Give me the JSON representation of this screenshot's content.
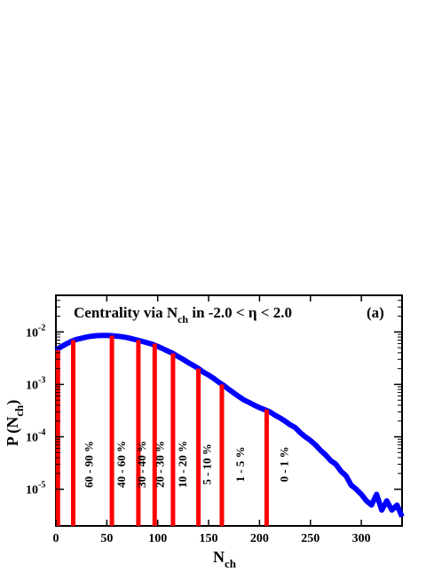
{
  "chart_data": {
    "type": "line",
    "title_parts": {
      "a": "Centrality via N",
      "sub": "ch",
      "b": " in  -2.0 < η < 2.0"
    },
    "panel_label": "(a)",
    "xlabel": {
      "main": "N",
      "sub": "ch"
    },
    "ylabel": {
      "pre": "P (N",
      "sub": "ch",
      "post": ")"
    },
    "xlim": [
      0,
      340
    ],
    "ylim": [
      2e-06,
      0.05
    ],
    "yscale": "log",
    "x_ticks": [
      0,
      50,
      100,
      150,
      200,
      250,
      300
    ],
    "x_tick_labels": [
      "0",
      "50",
      "100",
      "150",
      "200",
      "250",
      "300"
    ],
    "y_ticks": [
      {
        "value": 0.01,
        "base": "10",
        "exp": "-2"
      },
      {
        "value": 0.001,
        "base": "10",
        "exp": "-3"
      },
      {
        "value": 0.0001,
        "base": "10",
        "exp": "-4"
      },
      {
        "value": 1e-05,
        "base": "10",
        "exp": "-5"
      }
    ],
    "series": [
      {
        "color": "#0000ff",
        "points": [
          [
            0,
            0.0045
          ],
          [
            5,
            0.0052
          ],
          [
            10,
            0.0059
          ],
          [
            15,
            0.0066
          ],
          [
            20,
            0.0072
          ],
          [
            25,
            0.0076
          ],
          [
            30,
            0.008
          ],
          [
            35,
            0.0083
          ],
          [
            40,
            0.0085
          ],
          [
            45,
            0.0086
          ],
          [
            50,
            0.0086
          ],
          [
            55,
            0.0085
          ],
          [
            60,
            0.0083
          ],
          [
            65,
            0.0081
          ],
          [
            70,
            0.0078
          ],
          [
            75,
            0.0074
          ],
          [
            80,
            0.007
          ],
          [
            85,
            0.0066
          ],
          [
            90,
            0.0062
          ],
          [
            95,
            0.0058
          ],
          [
            100,
            0.0053
          ],
          [
            105,
            0.0048
          ],
          [
            110,
            0.0043
          ],
          [
            115,
            0.0039
          ],
          [
            120,
            0.0034
          ],
          [
            125,
            0.003
          ],
          [
            130,
            0.0026
          ],
          [
            135,
            0.0023
          ],
          [
            140,
            0.002
          ],
          [
            145,
            0.0017
          ],
          [
            150,
            0.0015
          ],
          [
            155,
            0.0013
          ],
          [
            160,
            0.0011
          ],
          [
            165,
            0.00095
          ],
          [
            170,
            0.0008
          ],
          [
            175,
            0.00068
          ],
          [
            180,
            0.00058
          ],
          [
            185,
            0.0005
          ],
          [
            190,
            0.00045
          ],
          [
            195,
            0.0004
          ],
          [
            200,
            0.00036
          ],
          [
            205,
            0.00033
          ],
          [
            210,
            0.0003
          ],
          [
            215,
            0.00026
          ],
          [
            220,
            0.00023
          ],
          [
            225,
            0.0002
          ],
          [
            230,
            0.00017
          ],
          [
            235,
            0.00015
          ],
          [
            240,
            0.00012
          ],
          [
            245,
            0.0001
          ],
          [
            250,
            8.5e-05
          ],
          [
            255,
            7e-05
          ],
          [
            260,
            5.5e-05
          ],
          [
            265,
            4.5e-05
          ],
          [
            270,
            3.5e-05
          ],
          [
            275,
            3e-05
          ],
          [
            280,
            2.2e-05
          ],
          [
            285,
            1.8e-05
          ],
          [
            290,
            1.2e-05
          ],
          [
            295,
            1e-05
          ],
          [
            300,
            8e-06
          ],
          [
            305,
            6e-06
          ],
          [
            310,
            5e-06
          ],
          [
            315,
            8e-06
          ],
          [
            320,
            4e-06
          ],
          [
            325,
            6e-06
          ],
          [
            330,
            4e-06
          ],
          [
            335,
            5e-06
          ],
          [
            340,
            3e-06
          ]
        ]
      }
    ],
    "cuts": [
      {
        "x": 2,
        "y": 0.0045
      },
      {
        "x": 17,
        "y": 0.007
      },
      {
        "x": 55,
        "y": 0.0085
      },
      {
        "x": 81,
        "y": 0.007
      },
      {
        "x": 97,
        "y": 0.006
      },
      {
        "x": 115,
        "y": 0.0039
      },
      {
        "x": 140,
        "y": 0.002
      },
      {
        "x": 163,
        "y": 0.001
      },
      {
        "x": 207,
        "y": 0.00033
      }
    ],
    "bands": [
      {
        "label": "60 - 90 %",
        "x": 36,
        "y": 3e-05
      },
      {
        "label": "40 - 60 %",
        "x": 68,
        "y": 3e-05
      },
      {
        "label": "30 - 40 %",
        "x": 88,
        "y": 3e-05
      },
      {
        "label": "20 - 30 %",
        "x": 106,
        "y": 3e-05
      },
      {
        "label": "10 - 20 %",
        "x": 128,
        "y": 3e-05
      },
      {
        "label": "5 - 10 %",
        "x": 152,
        "y": 3e-05
      },
      {
        "label": "1 - 5 %",
        "x": 185,
        "y": 3e-05
      },
      {
        "label": "0 - 1 %",
        "x": 228,
        "y": 3e-05
      }
    ],
    "cut_color": "#ff0000",
    "grid": false,
    "legend": "none"
  }
}
